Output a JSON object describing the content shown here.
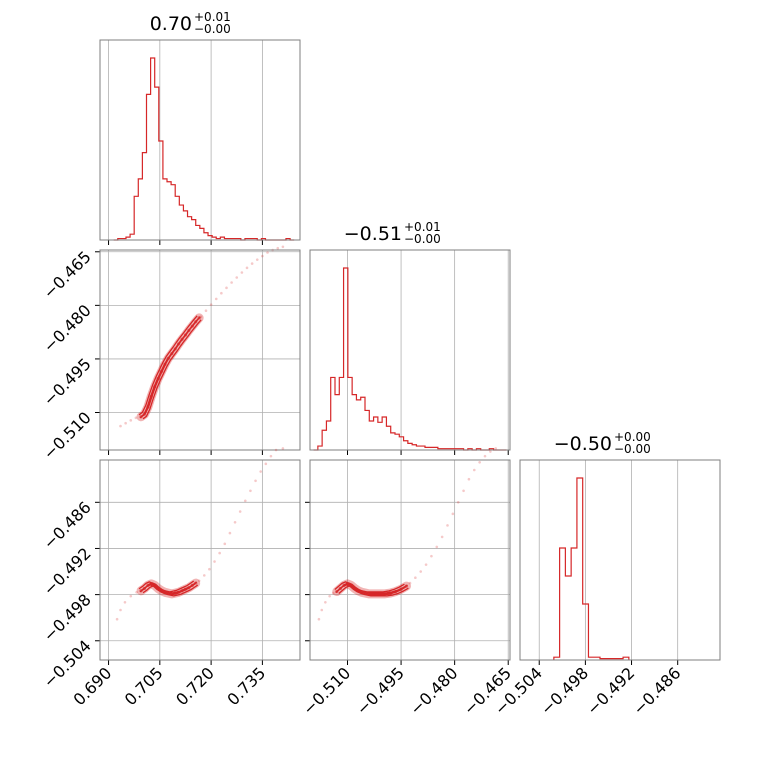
{
  "chart_data": {
    "type": "corner",
    "color": "#d62728",
    "parameters": [
      {
        "title": {
          "value": "0.70",
          "plus": "+0.01",
          "minus": "−0.00"
        },
        "range": [
          0.6875,
          0.746
        ],
        "ticks": [
          0.69,
          0.705,
          0.72,
          0.735
        ],
        "tick_labels": [
          "0.690",
          "0.705",
          "0.720",
          "0.735"
        ]
      },
      {
        "title": {
          "value": "−0.51",
          "plus": "+0.01",
          "minus": "−0.00"
        },
        "range": [
          -0.5205,
          -0.4645
        ],
        "ticks": [
          -0.51,
          -0.495,
          -0.48,
          -0.465
        ],
        "tick_labels": [
          "−0.510",
          "−0.495",
          "−0.480",
          "−0.465"
        ]
      },
      {
        "title": {
          "value": "−0.50",
          "plus": "+0.00",
          "minus": "−0.00"
        },
        "range": [
          -0.5065,
          -0.4805
        ],
        "ticks": [
          -0.504,
          -0.498,
          -0.492,
          -0.486
        ],
        "tick_labels": [
          "−0.504",
          "−0.498",
          "−0.492",
          "−0.486"
        ]
      }
    ],
    "histograms": [
      {
        "param": 0,
        "edges": [
          0.6915,
          0.6927,
          0.6939,
          0.6951,
          0.6963,
          0.6975,
          0.6987,
          0.6999,
          0.7011,
          0.7023,
          0.7035,
          0.7047,
          0.7059,
          0.7071,
          0.7083,
          0.7095,
          0.7107,
          0.7119,
          0.7131,
          0.7143,
          0.7155,
          0.7167,
          0.7179,
          0.7191,
          0.7203,
          0.7215,
          0.7227,
          0.7239,
          0.7251,
          0.7263,
          0.7275,
          0.7287,
          0.7299,
          0.7311,
          0.7323,
          0.7335,
          0.7347,
          0.7359,
          0.7371,
          0.7383,
          0.7395,
          0.7407,
          0.7419,
          0.7431,
          0.7443
        ],
        "counts": [
          0,
          1,
          1,
          2,
          4,
          30,
          42,
          60,
          100,
          125,
          105,
          68,
          42,
          40,
          38,
          30,
          24,
          20,
          16,
          14,
          10,
          8,
          5,
          3,
          2,
          1,
          2,
          1,
          1,
          1,
          1,
          0,
          1,
          1,
          1,
          0,
          1,
          0,
          0,
          0,
          0,
          0,
          1,
          0
        ]
      },
      {
        "param": 1,
        "edges": [
          -0.5195,
          -0.5183,
          -0.5171,
          -0.5159,
          -0.5147,
          -0.5135,
          -0.5123,
          -0.5111,
          -0.5099,
          -0.5087,
          -0.5075,
          -0.5063,
          -0.5051,
          -0.5039,
          -0.5027,
          -0.5015,
          -0.5003,
          -0.4991,
          -0.4979,
          -0.4967,
          -0.4955,
          -0.4943,
          -0.4931,
          -0.4919,
          -0.4907,
          -0.4895,
          -0.4883,
          -0.4871,
          -0.4859,
          -0.4847,
          -0.4835,
          -0.4823,
          -0.4811,
          -0.4799,
          -0.4787,
          -0.4775,
          -0.4763,
          -0.4751,
          -0.4739,
          -0.4727,
          -0.4715,
          -0.4703,
          -0.4691,
          -0.4679,
          -0.4667,
          -0.4655
        ],
        "counts": [
          0,
          3,
          15,
          22,
          55,
          42,
          55,
          138,
          55,
          42,
          38,
          40,
          30,
          22,
          25,
          21,
          25,
          18,
          13,
          12,
          10,
          7,
          5,
          4,
          3,
          3,
          2,
          2,
          2,
          1,
          1,
          1,
          1,
          1,
          1,
          0,
          1,
          0,
          1,
          0,
          0,
          1,
          0,
          0,
          0
        ]
      },
      {
        "param": 2,
        "edges": [
          -0.5021,
          -0.50135,
          -0.5006,
          -0.49985,
          -0.4991,
          -0.49835,
          -0.4976,
          -0.49685,
          -0.4961,
          -0.49535,
          -0.4946,
          -0.49385,
          -0.4931,
          -0.49235
        ],
        "counts": [
          2,
          80,
          60,
          80,
          130,
          40,
          2,
          2,
          1,
          1,
          1,
          1,
          2
        ]
      }
    ],
    "scatter_panels": [
      {
        "x_param": 0,
        "y_param": 1,
        "dense_points": [
          [
            0.6995,
            -0.5112
          ],
          [
            0.7005,
            -0.5105
          ],
          [
            0.7015,
            -0.5085
          ],
          [
            0.7025,
            -0.5055
          ],
          [
            0.7035,
            -0.5028
          ],
          [
            0.7045,
            -0.5005
          ],
          [
            0.7055,
            -0.4985
          ],
          [
            0.7065,
            -0.4965
          ],
          [
            0.7075,
            -0.4948
          ],
          [
            0.7085,
            -0.4935
          ],
          [
            0.7095,
            -0.4922
          ],
          [
            0.7105,
            -0.4908
          ],
          [
            0.7115,
            -0.4895
          ],
          [
            0.7125,
            -0.4883
          ],
          [
            0.7135,
            -0.487
          ],
          [
            0.7145,
            -0.4858
          ],
          [
            0.7155,
            -0.4846
          ],
          [
            0.7165,
            -0.4835
          ]
        ],
        "sparse_points": [
          [
            0.6935,
            -0.5138
          ],
          [
            0.695,
            -0.513
          ],
          [
            0.6965,
            -0.5122
          ],
          [
            0.698,
            -0.5115
          ],
          [
            0.717,
            -0.4832
          ],
          [
            0.7185,
            -0.4815
          ],
          [
            0.72,
            -0.4798
          ],
          [
            0.7215,
            -0.4782
          ],
          [
            0.723,
            -0.4766
          ],
          [
            0.7245,
            -0.4751
          ],
          [
            0.726,
            -0.4736
          ],
          [
            0.7275,
            -0.4722
          ],
          [
            0.729,
            -0.4708
          ],
          [
            0.7305,
            -0.4695
          ],
          [
            0.732,
            -0.4683
          ],
          [
            0.7335,
            -0.4672
          ],
          [
            0.735,
            -0.4662
          ],
          [
            0.7365,
            -0.4652
          ],
          [
            0.738,
            -0.4645
          ],
          [
            0.7395,
            -0.464
          ],
          [
            0.741,
            -0.4636
          ]
        ]
      },
      {
        "x_param": 0,
        "y_param": 2,
        "dense_points": [
          [
            0.6995,
            -0.4975
          ],
          [
            0.7005,
            -0.4972
          ],
          [
            0.7015,
            -0.4968
          ],
          [
            0.7025,
            -0.4966
          ],
          [
            0.7035,
            -0.4968
          ],
          [
            0.7045,
            -0.4972
          ],
          [
            0.7055,
            -0.4975
          ],
          [
            0.7065,
            -0.4977
          ],
          [
            0.7075,
            -0.4978
          ],
          [
            0.7085,
            -0.4979
          ],
          [
            0.7095,
            -0.4978
          ],
          [
            0.7105,
            -0.4977
          ],
          [
            0.7115,
            -0.4975
          ],
          [
            0.7125,
            -0.4973
          ],
          [
            0.7135,
            -0.4971
          ],
          [
            0.7145,
            -0.4968
          ],
          [
            0.7155,
            -0.4965
          ]
        ],
        "sparse_points": [
          [
            0.6925,
            -0.5012
          ],
          [
            0.6935,
            -0.5
          ],
          [
            0.6948,
            -0.499
          ],
          [
            0.6965,
            -0.4982
          ],
          [
            0.6982,
            -0.4977
          ],
          [
            0.7165,
            -0.4962
          ],
          [
            0.718,
            -0.4955
          ],
          [
            0.7195,
            -0.4947
          ],
          [
            0.721,
            -0.4937
          ],
          [
            0.7225,
            -0.4926
          ],
          [
            0.724,
            -0.4914
          ],
          [
            0.7255,
            -0.49
          ],
          [
            0.727,
            -0.4886
          ],
          [
            0.7285,
            -0.4872
          ],
          [
            0.73,
            -0.4858
          ],
          [
            0.7315,
            -0.4845
          ],
          [
            0.733,
            -0.4832
          ],
          [
            0.7345,
            -0.482
          ],
          [
            0.736,
            -0.481
          ],
          [
            0.7375,
            -0.48
          ],
          [
            0.739,
            -0.4792
          ],
          [
            0.741,
            -0.479
          ]
        ]
      },
      {
        "x_param": 1,
        "y_param": 2,
        "dense_points": [
          [
            -0.513,
            -0.4976
          ],
          [
            -0.512,
            -0.4972
          ],
          [
            -0.511,
            -0.4968
          ],
          [
            -0.51,
            -0.4966
          ],
          [
            -0.509,
            -0.4968
          ],
          [
            -0.508,
            -0.4972
          ],
          [
            -0.507,
            -0.4975
          ],
          [
            -0.506,
            -0.4977
          ],
          [
            -0.505,
            -0.4978
          ],
          [
            -0.504,
            -0.4979
          ],
          [
            -0.5025,
            -0.4979
          ],
          [
            -0.501,
            -0.4979
          ],
          [
            -0.4995,
            -0.4979
          ],
          [
            -0.498,
            -0.4978
          ],
          [
            -0.4965,
            -0.4976
          ],
          [
            -0.495,
            -0.4973
          ],
          [
            -0.4935,
            -0.4969
          ]
        ],
        "sparse_points": [
          [
            -0.518,
            -0.5012
          ],
          [
            -0.5172,
            -0.5
          ],
          [
            -0.5162,
            -0.499
          ],
          [
            -0.515,
            -0.4982
          ],
          [
            -0.514,
            -0.4978
          ],
          [
            -0.4925,
            -0.4965
          ],
          [
            -0.491,
            -0.4958
          ],
          [
            -0.4895,
            -0.495
          ],
          [
            -0.488,
            -0.4941
          ],
          [
            -0.4865,
            -0.493
          ],
          [
            -0.485,
            -0.4918
          ],
          [
            -0.4835,
            -0.4905
          ],
          [
            -0.482,
            -0.489
          ],
          [
            -0.4805,
            -0.4875
          ],
          [
            -0.479,
            -0.486
          ],
          [
            -0.4775,
            -0.4845
          ],
          [
            -0.476,
            -0.483
          ],
          [
            -0.4745,
            -0.4818
          ],
          [
            -0.473,
            -0.4808
          ],
          [
            -0.4715,
            -0.48
          ],
          [
            -0.47,
            -0.4794
          ],
          [
            -0.4685,
            -0.479
          ]
        ]
      }
    ]
  }
}
